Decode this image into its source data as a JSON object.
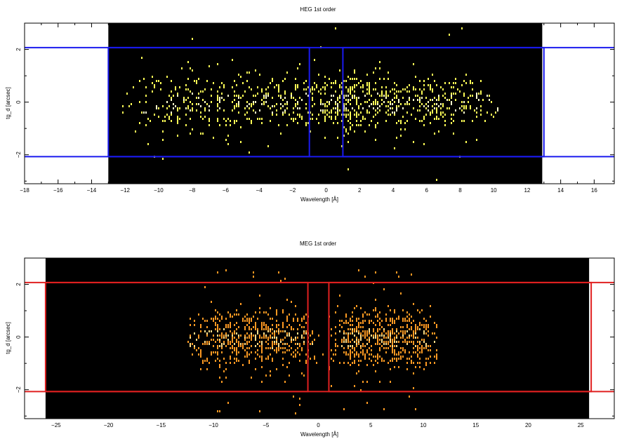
{
  "chart_data": [
    {
      "type": "heatmap",
      "title": "HEG 1st order",
      "xlabel": "Wavelength [Å]",
      "ylabel": "tg_d [arcsec]",
      "xlim": [
        -18,
        17.2
      ],
      "ylim": [
        -3.1,
        3.0
      ],
      "data_xrange": [
        -13,
        12.9
      ],
      "x_ticks": [
        -18,
        -16,
        -14,
        -12,
        -10,
        -8,
        -6,
        -4,
        -2,
        0,
        2,
        4,
        6,
        8,
        10,
        12,
        14,
        16
      ],
      "x_tick_labels": [
        "−18",
        "−16",
        "−14",
        "−12",
        "−10",
        "−8",
        "−6",
        "−4",
        "−2",
        "0",
        "2",
        "4",
        "6",
        "8",
        "10",
        "12",
        "14",
        "16"
      ],
      "y_ticks": [
        -2,
        0,
        2
      ],
      "y_tick_labels": [
        "−2",
        "0",
        "2"
      ],
      "background_color": "#000000",
      "event_color": "#ffff55",
      "event_bright_color": "#ffffcc",
      "event_clusters": [
        {
          "x_center": -3.8,
          "x_halfwidth": 8.8,
          "y_sigma": 0.55,
          "count": 560
        },
        {
          "x_center": 4.8,
          "x_halfwidth": 5.8,
          "y_sigma": 0.5,
          "count": 420
        }
      ],
      "regions": [
        {
          "x": [
            -13,
            -1
          ],
          "y": [
            -2.07,
            2.07
          ]
        },
        {
          "x": [
            1,
            13
          ],
          "y": [
            -2.07,
            2.07
          ]
        }
      ],
      "region_color": "#1a1aee",
      "extraction_band": [
        -2.07,
        2.07
      ]
    },
    {
      "type": "heatmap",
      "title": "MEG 1st order",
      "xlabel": "Wavelength [Å]",
      "ylabel": "tg_d [arcsec]",
      "xlim": [
        -28,
        28.2
      ],
      "ylim": [
        -3.1,
        3.0
      ],
      "data_xrange": [
        -26,
        25.8
      ],
      "x_ticks": [
        -25,
        -20,
        -15,
        -10,
        -5,
        0,
        5,
        10,
        15,
        20,
        25
      ],
      "x_tick_labels": [
        "−25",
        "−20",
        "−15",
        "−10",
        "−5",
        "0",
        "5",
        "10",
        "15",
        "20",
        "25"
      ],
      "y_ticks": [
        -2,
        0,
        2
      ],
      "y_tick_labels": [
        "−2",
        "0",
        "2"
      ],
      "background_color": "#000000",
      "event_color": "#ff9922",
      "event_bright_color": "#ffdd88",
      "event_clusters": [
        {
          "x_center": -6.2,
          "x_halfwidth": 6.6,
          "y_sigma": 0.55,
          "count": 620
        },
        {
          "x_center": 6.2,
          "x_halfwidth": 5.6,
          "y_sigma": 0.55,
          "count": 620
        }
      ],
      "regions": [
        {
          "x": [
            -26,
            -1
          ],
          "y": [
            -2.07,
            2.07
          ]
        },
        {
          "x": [
            1,
            26
          ],
          "y": [
            -2.07,
            2.07
          ]
        }
      ],
      "region_color": "#e02020",
      "extraction_band": [
        -2.07,
        2.07
      ]
    }
  ]
}
